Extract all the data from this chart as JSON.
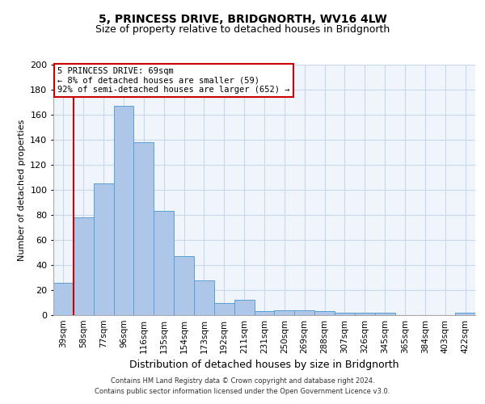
{
  "title1": "5, PRINCESS DRIVE, BRIDGNORTH, WV16 4LW",
  "title2": "Size of property relative to detached houses in Bridgnorth",
  "xlabel": "Distribution of detached houses by size in Bridgnorth",
  "ylabel": "Number of detached properties",
  "categories": [
    "39sqm",
    "58sqm",
    "77sqm",
    "96sqm",
    "116sqm",
    "135sqm",
    "154sqm",
    "173sqm",
    "192sqm",
    "211sqm",
    "231sqm",
    "250sqm",
    "269sqm",
    "288sqm",
    "307sqm",
    "326sqm",
    "345sqm",
    "365sqm",
    "384sqm",
    "403sqm",
    "422sqm"
  ],
  "values": [
    26,
    78,
    105,
    167,
    138,
    83,
    47,
    28,
    10,
    12,
    3,
    4,
    4,
    3,
    2,
    2,
    2,
    0,
    0,
    0,
    2
  ],
  "bar_color": "#aec6e8",
  "bar_edge_color": "#5a9fd4",
  "vline_color": "#cc0000",
  "vline_pos": 0.5,
  "annotation_text": "5 PRINCESS DRIVE: 69sqm\n← 8% of detached houses are smaller (59)\n92% of semi-detached houses are larger (652) →",
  "annotation_box_color": "#cc0000",
  "ylim": [
    0,
    200
  ],
  "yticks": [
    0,
    20,
    40,
    60,
    80,
    100,
    120,
    140,
    160,
    180,
    200
  ],
  "footer1": "Contains HM Land Registry data © Crown copyright and database right 2024.",
  "footer2": "Contains public sector information licensed under the Open Government Licence v3.0.",
  "bg_color": "#f0f5fb",
  "grid_color": "#c8d8ea",
  "title1_fontsize": 10,
  "title2_fontsize": 9,
  "ylabel_fontsize": 8,
  "xlabel_fontsize": 9,
  "tick_fontsize": 7.5,
  "ytick_fontsize": 8,
  "footer_fontsize": 6.0,
  "ann_fontsize": 7.5
}
